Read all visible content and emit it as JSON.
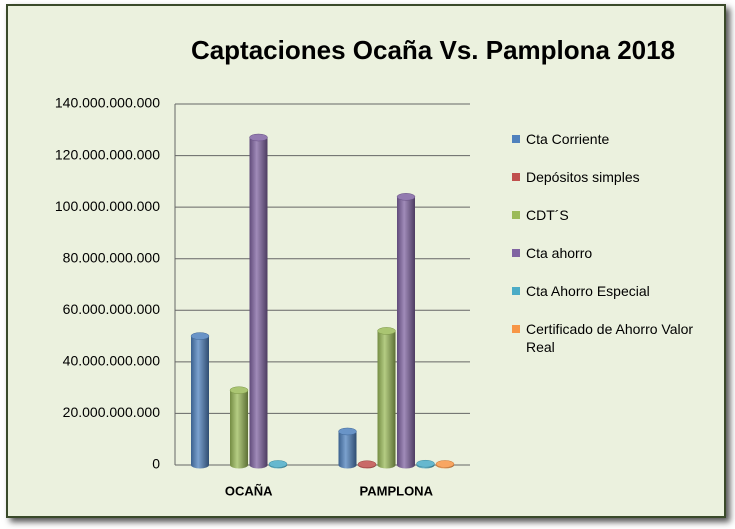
{
  "chart_data": {
    "type": "bar",
    "title": "Captaciones Ocaña Vs. Pamplona 2018",
    "categories": [
      "OCAÑA",
      "PAMPLONA"
    ],
    "series": [
      {
        "name": "Cta Corriente",
        "color": "#4f81bd",
        "values": [
          50000000000,
          13000000000
        ]
      },
      {
        "name": "Depósitos simples",
        "color": "#c0504d",
        "values": [
          0,
          300000000
        ]
      },
      {
        "name": "CDT´S",
        "color": "#9bbb59",
        "values": [
          29000000000,
          52000000000
        ]
      },
      {
        "name": "Cta ahorro",
        "color": "#8064a2",
        "values": [
          127000000000,
          104000000000
        ]
      },
      {
        "name": "Cta Ahorro Especial",
        "color": "#4bacc6",
        "values": [
          400000000,
          500000000
        ]
      },
      {
        "name": "Certificado de Ahorro Valor Real",
        "color": "#f79646",
        "values": [
          0,
          400000000
        ]
      }
    ],
    "ylim": [
      0,
      140000000000
    ],
    "yticks": [
      0,
      {
        "value": 20000000000,
        "label": "20.000.000.000"
      },
      {
        "value": 40000000000,
        "label": "40.000.000.000"
      },
      {
        "value": 60000000000,
        "label": "60.000.000.000"
      },
      {
        "value": 80000000000,
        "label": "80.000.000.000"
      },
      {
        "value": 100000000000,
        "label": "100.000.000.000"
      },
      {
        "value": 120000000000,
        "label": "120.000.000.000"
      },
      {
        "value": 140000000000,
        "label": "140.000.000.000"
      }
    ],
    "grid": true,
    "legend": "right"
  }
}
